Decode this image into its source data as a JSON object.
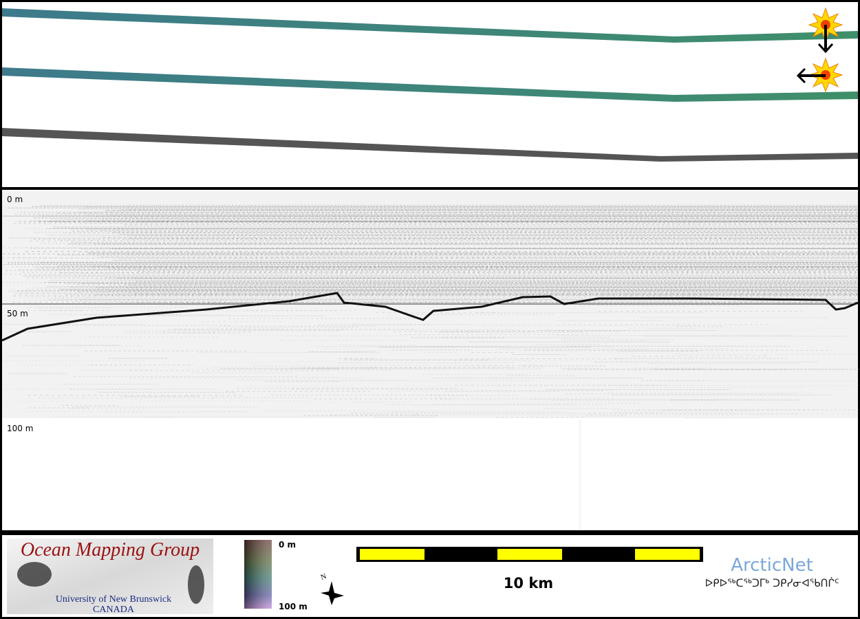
{
  "depth_labels": [
    "0 m",
    "50 m",
    "100 m"
  ],
  "legend": {
    "title": "Ocean Mapping Group",
    "university": "University of New Brunswick",
    "country": "CANADA",
    "colorbar_top": "0 m",
    "colorbar_bottom": "100 m",
    "compass": "N",
    "scale": "10 km",
    "partner": "ArcticNet",
    "partner_inuktitut": "ᐅᑭᐅᖅᑕᖅᑐᒥᒃ ᑐᑭᓯᓂᐊᖃᑎᒌᑦ"
  }
}
